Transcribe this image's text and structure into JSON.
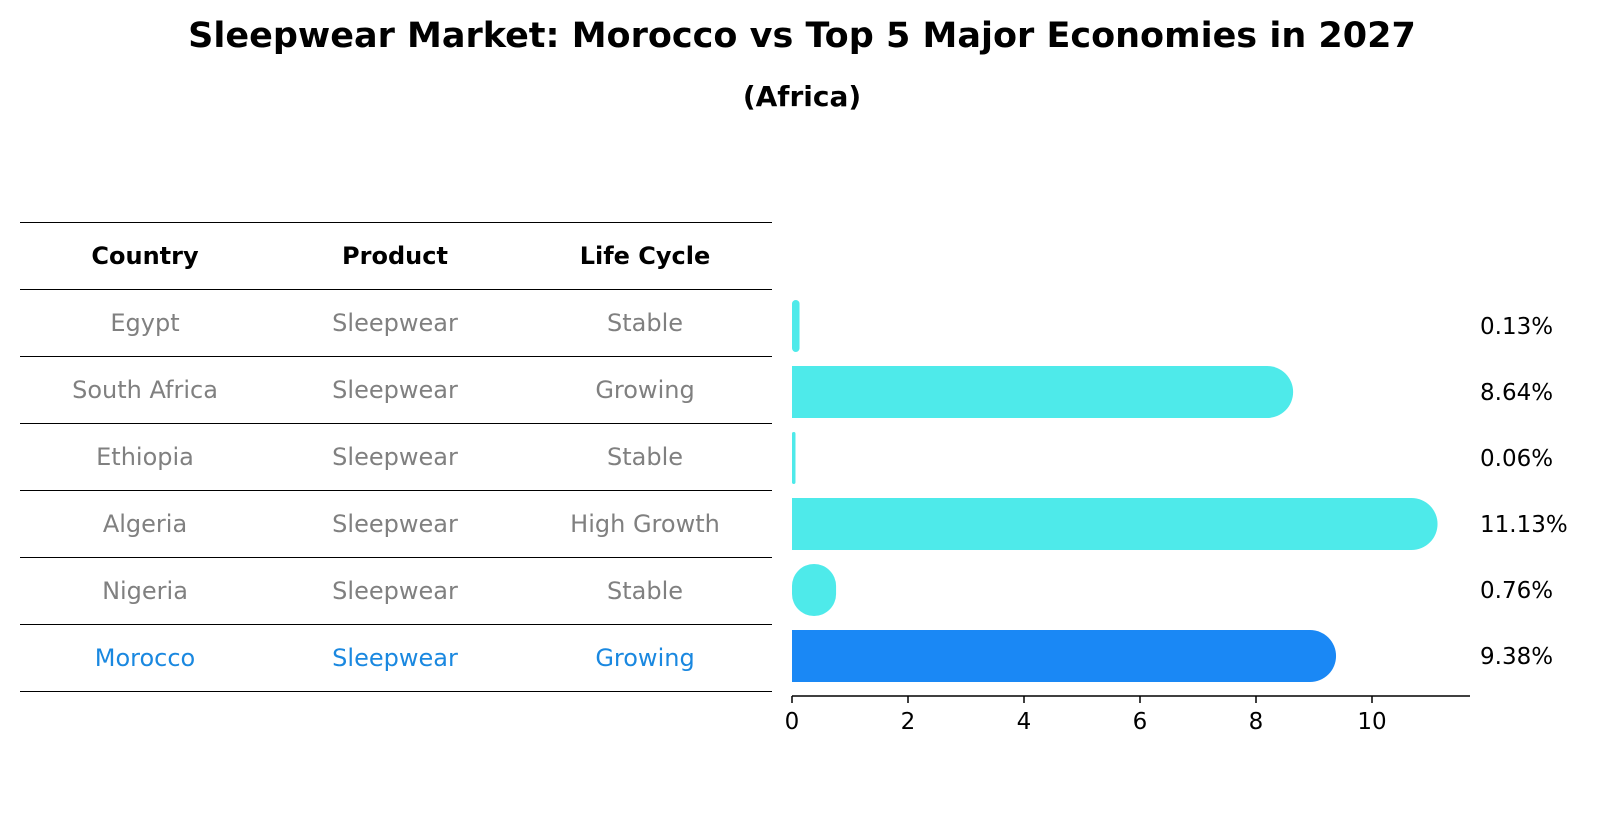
{
  "chart_data": {
    "type": "bar",
    "title": "Sleepwear Market: Morocco vs Top 5 Major Economies in 2027",
    "subtitle": "(Africa)",
    "table": {
      "headers": [
        "Country",
        "Product",
        "Life Cycle"
      ],
      "rows": [
        [
          "Egypt",
          "Sleepwear",
          "Stable"
        ],
        [
          "South Africa",
          "Sleepwear",
          "Growing"
        ],
        [
          "Ethiopia",
          "Sleepwear",
          "Stable"
        ],
        [
          "Algeria",
          "Sleepwear",
          "High Growth"
        ],
        [
          "Nigeria",
          "Sleepwear",
          "Stable"
        ],
        [
          "Morocco",
          "Sleepwear",
          "Growing"
        ]
      ],
      "highlight_row": 5
    },
    "categories": [
      "Egypt",
      "South Africa",
      "Ethiopia",
      "Algeria",
      "Nigeria",
      "Morocco"
    ],
    "values": [
      0.13,
      8.64,
      0.06,
      11.13,
      0.76,
      9.38
    ],
    "value_labels": [
      "0.13%",
      "8.64%",
      "0.06%",
      "11.13%",
      "0.76%",
      "9.38%"
    ],
    "xlim": [
      0,
      11.7
    ],
    "xticks": [
      0,
      2,
      4,
      6,
      8,
      10
    ],
    "xlabel": "",
    "ylabel": "",
    "grid": false,
    "colors": {
      "bar": "#4eeaea",
      "highlight_bar": "#1a88f5",
      "highlight_text": "#1a88e0",
      "table_text": "#808080"
    }
  }
}
